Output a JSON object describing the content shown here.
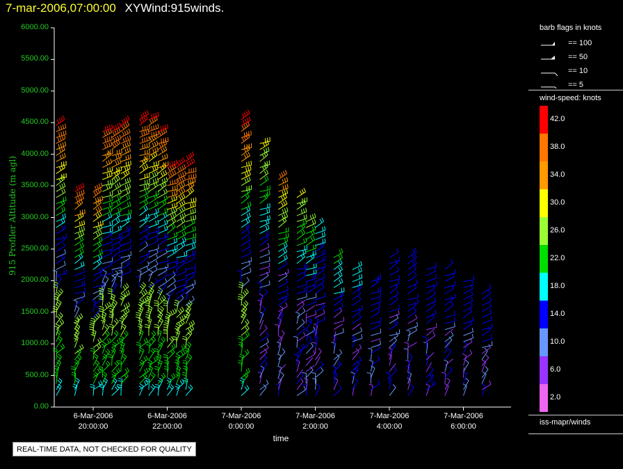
{
  "header": {
    "timestamp": "7-mar-2006,07:00:00",
    "product": "XYWind:915winds."
  },
  "chart_data": {
    "type": "scatter",
    "title": "7-mar-2006,07:00:00 XYWind:915winds.",
    "ylabel": "915 Profiler Altitude (m agl)",
    "xlabel": "time",
    "ylim": [
      0,
      6000
    ],
    "y_ticks": [
      "0.00",
      "500.00",
      "1000.00",
      "1500.00",
      "2000.00",
      "2500.00",
      "3000.00",
      "3500.00",
      "4000.00",
      "4500.00",
      "5000.00",
      "5500.00",
      "6000.00"
    ],
    "x_ticks": [
      {
        "date": "6-Mar-2006",
        "time": "20:00:00"
      },
      {
        "date": "6-Mar-2006",
        "time": "22:00:00"
      },
      {
        "date": "7-Mar-2006",
        "time": "0:00:00"
      },
      {
        "date": "7-Mar-2006",
        "time": "2:00:00"
      },
      {
        "date": "7-Mar-2006",
        "time": "4:00:00"
      },
      {
        "date": "7-Mar-2006",
        "time": "6:00:00"
      }
    ],
    "profiles": [
      {
        "time": "19:00",
        "top_m": 4500,
        "max_kt": 42
      },
      {
        "time": "19:30",
        "top_m": 3500,
        "max_kt": 42
      },
      {
        "time": "20:00",
        "top_m": 3450,
        "max_kt": 40
      },
      {
        "time": "20:15",
        "top_m": 4450,
        "max_kt": 42
      },
      {
        "time": "20:30",
        "top_m": 4450,
        "max_kt": 42
      },
      {
        "time": "20:45",
        "top_m": 4500,
        "max_kt": 42
      },
      {
        "time": "21:15",
        "top_m": 4550,
        "max_kt": 42
      },
      {
        "time": "21:30",
        "top_m": 4600,
        "max_kt": 42
      },
      {
        "time": "21:45",
        "top_m": 4450,
        "max_kt": 42
      },
      {
        "time": "22:00",
        "top_m": 3850,
        "max_kt": 42
      },
      {
        "time": "22:15",
        "top_m": 3850,
        "max_kt": 42
      },
      {
        "time": "22:30",
        "top_m": 3900,
        "max_kt": 42
      },
      {
        "time": "00:00",
        "top_m": 4550,
        "max_kt": 42
      },
      {
        "time": "00:30",
        "top_m": 4200,
        "max_kt": 30
      },
      {
        "time": "01:00",
        "top_m": 3600,
        "max_kt": 36
      },
      {
        "time": "01:30",
        "top_m": 3400,
        "max_kt": 30
      },
      {
        "time": "01:45",
        "top_m": 3000,
        "max_kt": 26
      },
      {
        "time": "02:00",
        "top_m": 2900,
        "max_kt": 18
      },
      {
        "time": "02:30",
        "top_m": 2400,
        "max_kt": 22
      },
      {
        "time": "03:00",
        "top_m": 2200,
        "max_kt": 18
      },
      {
        "time": "03:30",
        "top_m": 2000,
        "max_kt": 16
      },
      {
        "time": "04:00",
        "top_m": 2400,
        "max_kt": 14
      },
      {
        "time": "04:30",
        "top_m": 2400,
        "max_kt": 16
      },
      {
        "time": "05:00",
        "top_m": 2200,
        "max_kt": 14
      },
      {
        "time": "05:30",
        "top_m": 2200,
        "max_kt": 12
      },
      {
        "time": "06:00",
        "top_m": 2000,
        "max_kt": 14
      },
      {
        "time": "06:30",
        "top_m": 1800,
        "max_kt": 12
      }
    ]
  },
  "legend": {
    "flags_title": "barb flags in knots",
    "flags": [
      "== 100",
      "== 50",
      "== 10",
      "== 5"
    ],
    "speed_title": "wind-speed: knots",
    "speed_labels": [
      "42.0",
      "38.0",
      "34.0",
      "30.0",
      "26.0",
      "22.0",
      "18.0",
      "14.0",
      "10.0",
      "6.0",
      "2.0"
    ],
    "speed_colors": [
      "#ff0000",
      "#ff7700",
      "#ff9900",
      "#ffff00",
      "#99ff33",
      "#00dd00",
      "#00ffff",
      "#0000ff",
      "#6699ff",
      "#9933ff",
      "#ee66ee"
    ],
    "source": "iss-mapr/winds"
  },
  "footer": {
    "quality_note": "REAL-TIME DATA, NOT CHECKED FOR QUALITY"
  }
}
